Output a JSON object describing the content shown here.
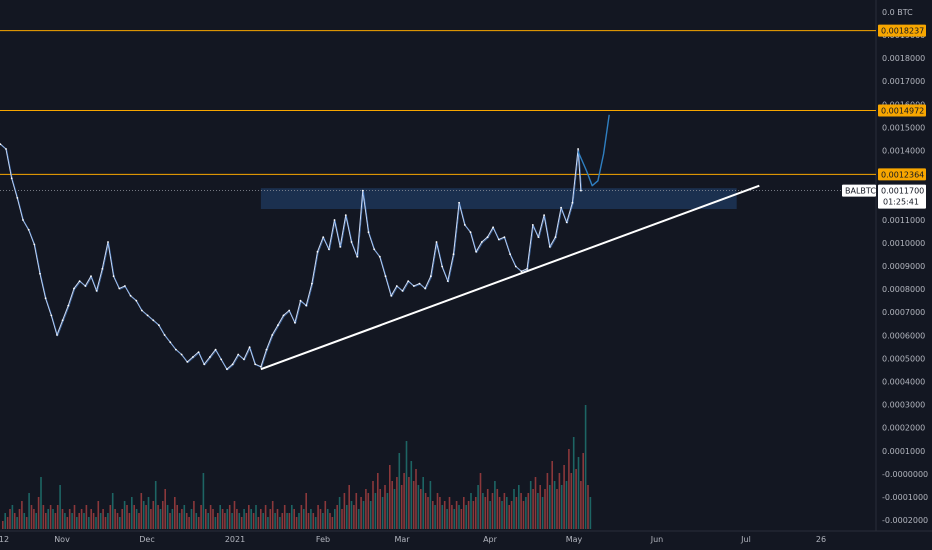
{
  "chart_data": {
    "type": "candlestick",
    "symbol": "BALBTC",
    "currency_label": "0.0 BTC",
    "y_ticks": [
      "0.0019000",
      "0.0018000",
      "0.0017000",
      "0.0016000",
      "0.0015000",
      "0.0014000",
      "0.0013000",
      "0.0012000",
      "0.0011000",
      "0.0010000",
      "0.0009000",
      "0.0008000",
      "0.0007000",
      "0.0006000",
      "0.0005000",
      "0.0004000",
      "0.0003000",
      "0.0002000",
      "0.0001000",
      "-0.0000000",
      "-0.0001000",
      "-0.0002000"
    ],
    "x_ticks": [
      "12",
      "Nov",
      "Dec",
      "2021",
      "Feb",
      "Mar",
      "Apr",
      "May",
      "Jun",
      "Jul",
      "26"
    ],
    "price_range": [
      0.0004,
      0.00195
    ],
    "horizontal_levels": [
      {
        "label": "0.0018237",
        "value": 0.0018237,
        "color": "#f7a600"
      },
      {
        "label": "0.0014972",
        "value": 0.0014972,
        "color": "#f7a600"
      },
      {
        "label": "0.0012364",
        "value": 0.0012364,
        "color": "#f7a600"
      }
    ],
    "last_price": {
      "label": "0.0011700",
      "value": 0.00117,
      "countdown": "01:25:41",
      "symbol_tag": "BALBTC"
    },
    "resistance_zone": {
      "low": 0.001095,
      "high": 0.00118,
      "from": "2021-01-10",
      "to": "2021-06-27",
      "color": "#1f3a5f"
    },
    "trendline": {
      "from": {
        "date": "2021-01-10",
        "price": 0.00044
      },
      "to": {
        "date": "2021-07-05",
        "price": 0.00119
      },
      "color": "#ffffff"
    },
    "projection": {
      "color": "#2f7fc1",
      "points": [
        {
          "date": "2021-05-02",
          "price": 0.00133
        },
        {
          "date": "2021-05-05",
          "price": 0.00125
        },
        {
          "date": "2021-05-07",
          "price": 0.00119
        },
        {
          "date": "2021-05-09",
          "price": 0.00121
        },
        {
          "date": "2021-05-11",
          "price": 0.00132
        },
        {
          "date": "2021-05-13",
          "price": 0.00148
        }
      ]
    },
    "price_series": [
      {
        "date": "2020-10-10",
        "price": 0.00136
      },
      {
        "date": "2020-10-12",
        "price": 0.00134
      },
      {
        "date": "2020-10-14",
        "price": 0.00122
      },
      {
        "date": "2020-10-16",
        "price": 0.00114
      },
      {
        "date": "2020-10-18",
        "price": 0.00105
      },
      {
        "date": "2020-10-20",
        "price": 0.00101
      },
      {
        "date": "2020-10-22",
        "price": 0.00095
      },
      {
        "date": "2020-10-24",
        "price": 0.00083
      },
      {
        "date": "2020-10-26",
        "price": 0.00073
      },
      {
        "date": "2020-10-28",
        "price": 0.00066
      },
      {
        "date": "2020-10-30",
        "price": 0.00058
      },
      {
        "date": "2020-11-01",
        "price": 0.00064
      },
      {
        "date": "2020-11-03",
        "price": 0.0007
      },
      {
        "date": "2020-11-05",
        "price": 0.00077
      },
      {
        "date": "2020-11-07",
        "price": 0.0008
      },
      {
        "date": "2020-11-09",
        "price": 0.00078
      },
      {
        "date": "2020-11-11",
        "price": 0.00082
      },
      {
        "date": "2020-11-13",
        "price": 0.00076
      },
      {
        "date": "2020-11-15",
        "price": 0.00085
      },
      {
        "date": "2020-11-17",
        "price": 0.00096
      },
      {
        "date": "2020-11-19",
        "price": 0.00082
      },
      {
        "date": "2020-11-21",
        "price": 0.00077
      },
      {
        "date": "2020-11-23",
        "price": 0.00078
      },
      {
        "date": "2020-11-25",
        "price": 0.00074
      },
      {
        "date": "2020-11-27",
        "price": 0.00072
      },
      {
        "date": "2020-11-29",
        "price": 0.00068
      },
      {
        "date": "2020-12-01",
        "price": 0.00066
      },
      {
        "date": "2020-12-03",
        "price": 0.00064
      },
      {
        "date": "2020-12-05",
        "price": 0.00062
      },
      {
        "date": "2020-12-07",
        "price": 0.00058
      },
      {
        "date": "2020-12-09",
        "price": 0.00055
      },
      {
        "date": "2020-12-11",
        "price": 0.00052
      },
      {
        "date": "2020-12-13",
        "price": 0.0005
      },
      {
        "date": "2020-12-15",
        "price": 0.00047
      },
      {
        "date": "2020-12-17",
        "price": 0.00049
      },
      {
        "date": "2020-12-19",
        "price": 0.00051
      },
      {
        "date": "2020-12-21",
        "price": 0.00046
      },
      {
        "date": "2020-12-23",
        "price": 0.00049
      },
      {
        "date": "2020-12-25",
        "price": 0.00052
      },
      {
        "date": "2020-12-27",
        "price": 0.00048
      },
      {
        "date": "2020-12-29",
        "price": 0.00044
      },
      {
        "date": "2020-12-31",
        "price": 0.00046
      },
      {
        "date": "2021-01-02",
        "price": 0.0005
      },
      {
        "date": "2021-01-04",
        "price": 0.00048
      },
      {
        "date": "2021-01-06",
        "price": 0.00053
      },
      {
        "date": "2021-01-08",
        "price": 0.00046
      },
      {
        "date": "2021-01-10",
        "price": 0.00045
      },
      {
        "date": "2021-01-12",
        "price": 0.00052
      },
      {
        "date": "2021-01-14",
        "price": 0.00058
      },
      {
        "date": "2021-01-16",
        "price": 0.00062
      },
      {
        "date": "2021-01-18",
        "price": 0.00066
      },
      {
        "date": "2021-01-20",
        "price": 0.00068
      },
      {
        "date": "2021-01-22",
        "price": 0.00063
      },
      {
        "date": "2021-01-24",
        "price": 0.00072
      },
      {
        "date": "2021-01-26",
        "price": 0.0007
      },
      {
        "date": "2021-01-28",
        "price": 0.00079
      },
      {
        "date": "2021-01-30",
        "price": 0.00092
      },
      {
        "date": "2021-02-01",
        "price": 0.00098
      },
      {
        "date": "2021-02-03",
        "price": 0.00093
      },
      {
        "date": "2021-02-05",
        "price": 0.00105
      },
      {
        "date": "2021-02-07",
        "price": 0.00094
      },
      {
        "date": "2021-02-09",
        "price": 0.00107
      },
      {
        "date": "2021-02-11",
        "price": 0.00096
      },
      {
        "date": "2021-02-13",
        "price": 0.0009
      },
      {
        "date": "2021-02-15",
        "price": 0.00117
      },
      {
        "date": "2021-02-17",
        "price": 0.001
      },
      {
        "date": "2021-02-19",
        "price": 0.00093
      },
      {
        "date": "2021-02-21",
        "price": 0.0009
      },
      {
        "date": "2021-02-23",
        "price": 0.00082
      },
      {
        "date": "2021-02-25",
        "price": 0.00074
      },
      {
        "date": "2021-02-27",
        "price": 0.00078
      },
      {
        "date": "2021-03-01",
        "price": 0.00076
      },
      {
        "date": "2021-03-03",
        "price": 0.0008
      },
      {
        "date": "2021-03-05",
        "price": 0.00078
      },
      {
        "date": "2021-03-07",
        "price": 0.00079
      },
      {
        "date": "2021-03-09",
        "price": 0.00077
      },
      {
        "date": "2021-03-11",
        "price": 0.00082
      },
      {
        "date": "2021-03-13",
        "price": 0.00096
      },
      {
        "date": "2021-03-15",
        "price": 0.00086
      },
      {
        "date": "2021-03-17",
        "price": 0.0008
      },
      {
        "date": "2021-03-19",
        "price": 0.00091
      },
      {
        "date": "2021-03-21",
        "price": 0.00112
      },
      {
        "date": "2021-03-23",
        "price": 0.00103
      },
      {
        "date": "2021-03-25",
        "price": 0.001
      },
      {
        "date": "2021-03-27",
        "price": 0.00092
      },
      {
        "date": "2021-03-29",
        "price": 0.00096
      },
      {
        "date": "2021-03-31",
        "price": 0.00098
      },
      {
        "date": "2021-04-02",
        "price": 0.00102
      },
      {
        "date": "2021-04-04",
        "price": 0.00097
      },
      {
        "date": "2021-04-06",
        "price": 0.00098
      },
      {
        "date": "2021-04-08",
        "price": 0.00091
      },
      {
        "date": "2021-04-10",
        "price": 0.00086
      },
      {
        "date": "2021-04-12",
        "price": 0.00084
      },
      {
        "date": "2021-04-14",
        "price": 0.00085
      },
      {
        "date": "2021-04-16",
        "price": 0.00103
      },
      {
        "date": "2021-04-18",
        "price": 0.00098
      },
      {
        "date": "2021-04-20",
        "price": 0.00107
      },
      {
        "date": "2021-04-22",
        "price": 0.00094
      },
      {
        "date": "2021-04-24",
        "price": 0.00098
      },
      {
        "date": "2021-04-26",
        "price": 0.0011
      },
      {
        "date": "2021-04-28",
        "price": 0.00104
      },
      {
        "date": "2021-04-30",
        "price": 0.00112
      },
      {
        "date": "2021-05-02",
        "price": 0.00134
      },
      {
        "date": "2021-05-03",
        "price": 0.00117
      }
    ],
    "volume_series": [
      2e-05,
      4e-05,
      3e-05,
      5e-05,
      6e-05,
      4e-05,
      3e-05,
      5e-05,
      7e-05,
      4e-05,
      3e-05,
      9e-05,
      6e-05,
      5e-05,
      4e-05,
      8e-05,
      0.00013,
      6e-05,
      4e-05,
      5e-05,
      6e-05,
      5e-05,
      4e-05,
      6e-05,
      0.00011,
      5e-05,
      4e-05,
      3e-05,
      5e-05,
      4e-05,
      6e-05,
      3e-05,
      4e-05,
      5e-05,
      4e-05,
      6e-05,
      3e-05,
      5e-05,
      4e-05,
      3e-05,
      7e-05,
      4e-05,
      5e-05,
      3e-05,
      4e-05,
      6e-05,
      9e-05,
      5e-05,
      4e-05,
      3e-05,
      5e-05,
      7e-05,
      6e-05,
      4e-05,
      8e-05,
      6e-05,
      5e-05,
      4e-05,
      9e-05,
      7e-05,
      6e-05,
      8e-05,
      5e-05,
      7e-05,
      0.00012,
      6e-05,
      5e-05,
      7e-05,
      0.0001,
      6e-05,
      4e-05,
      5e-05,
      8e-05,
      6e-05,
      4e-05,
      5e-05,
      6e-05,
      4e-05,
      3e-05,
      5e-05,
      7e-05,
      4e-05,
      3e-05,
      6e-05,
      0.00014,
      5e-05,
      4e-05,
      6e-05,
      5e-05,
      3e-05,
      4e-05,
      6e-05,
      5e-05,
      4e-05,
      5e-05,
      6e-05,
      4e-05,
      7e-05,
      5e-05,
      4e-05,
      3e-05,
      5e-05,
      4e-05,
      6e-05,
      5e-05,
      4e-05,
      6e-05,
      3e-05,
      5e-05,
      4e-05,
      6e-05,
      3e-05,
      5e-05,
      7e-05,
      4e-05,
      5e-05,
      3e-05,
      4e-05,
      6e-05,
      4e-05,
      4e-05,
      6e-05,
      5e-05,
      3e-05,
      4e-05,
      6e-05,
      5e-05,
      9e-05,
      4e-05,
      5e-05,
      4e-05,
      3e-05,
      6e-05,
      5e-05,
      4e-05,
      7e-05,
      5e-05,
      4e-05,
      3e-05,
      5e-05,
      6e-05,
      8e-05,
      5e-05,
      9e-05,
      6e-05,
      0.00011,
      7e-05,
      6e-05,
      9e-05,
      5e-05,
      8e-05,
      7e-05,
      0.0001,
      9e-05,
      7e-05,
      0.00012,
      9e-05,
      0.00014,
      0.0001,
      8e-05,
      0.00011,
      9e-05,
      0.00016,
      0.00012,
      0.0001,
      0.00013,
      0.00019,
      0.00011,
      0.00014,
      0.00022,
      0.00013,
      0.00017,
      0.00012,
      0.00015,
      0.00011,
      0.0001,
      0.00013,
      9e-05,
      8e-05,
      0.00012,
      7e-05,
      6e-05,
      9e-05,
      8e-05,
      6e-05,
      7e-05,
      5e-05,
      8e-05,
      6e-05,
      5e-05,
      7e-05,
      6e-05,
      5e-05,
      8e-05,
      6e-05,
      7e-05,
      9e-05,
      7e-05,
      8e-05,
      0.00011,
      0.00014,
      9e-05,
      8e-05,
      0.0001,
      7e-05,
      9e-05,
      0.00012,
      0.0001,
      8e-05,
      7e-05,
      9e-05,
      8e-05,
      6e-05,
      7e-05,
      0.0001,
      8e-05,
      0.00011,
      9e-05,
      7e-05,
      8e-05,
      9e-05,
      0.00012,
      0.0001,
      0.00013,
      9e-05,
      0.00011,
      8e-05,
      0.0001,
      0.00014,
      0.00011,
      0.00017,
      0.00012,
      0.0001,
      0.00014,
      0.00011,
      0.00016,
      0.00012,
      0.0002,
      0.00014,
      0.00023,
      0.00015,
      0.00018,
      0.00012,
      0.00019,
      0.00031,
      0.00011,
      8e-05
    ]
  }
}
